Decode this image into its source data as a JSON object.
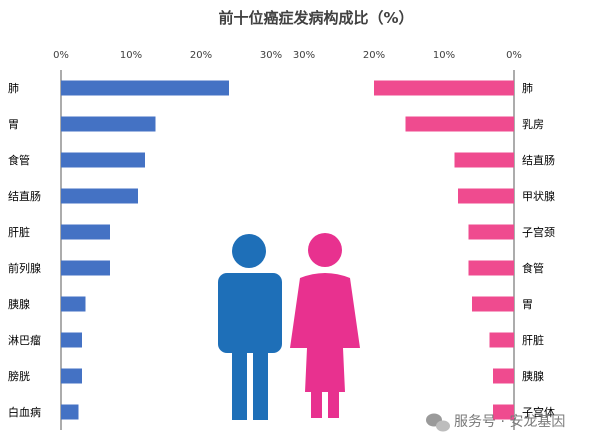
{
  "chart_data": {
    "type": "bar",
    "title": "前十位癌症发病构成比（%）",
    "colors": {
      "male": "#4472c4",
      "female": "#ef4b8f",
      "male_figure": "#1e6fb8",
      "female_figure": "#e8318f"
    },
    "left": {
      "categories": [
        "肺",
        "胃",
        "食管",
        "结直肠",
        "肝脏",
        "前列腺",
        "胰腺",
        "淋巴瘤",
        "膀胱",
        "白血病"
      ],
      "values": [
        24.0,
        13.5,
        12.0,
        11.0,
        7.0,
        7.0,
        3.5,
        3.0,
        3.0,
        2.5
      ],
      "xlim": [
        0,
        30
      ],
      "ticks": [
        "0%",
        "10%",
        "20%",
        "30%"
      ]
    },
    "right": {
      "categories": [
        "肺",
        "乳房",
        "结直肠",
        "甲状腺",
        "子宫颈",
        "食管",
        "胃",
        "肝脏",
        "胰腺",
        "子宫体"
      ],
      "values": [
        20.0,
        15.5,
        8.5,
        8.0,
        6.5,
        6.5,
        6.0,
        3.5,
        3.0,
        3.0
      ],
      "xlim": [
        30,
        0
      ],
      "ticks": [
        "30%",
        "20%",
        "10%",
        "0%"
      ]
    }
  },
  "watermark": {
    "text": "服务号 · 安龙基因",
    "icon": "wechat-icon"
  }
}
